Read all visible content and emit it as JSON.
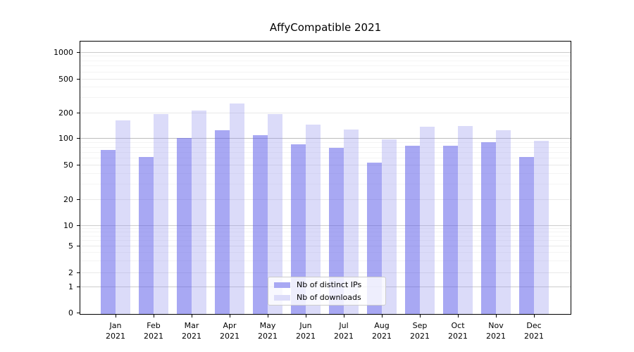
{
  "figure": {
    "background": "#ffffff",
    "plot_border_color": "#000000"
  },
  "chart_data": {
    "type": "bar",
    "title": "AffyCompatible 2021",
    "categories": [
      "Jan",
      "Feb",
      "Mar",
      "Apr",
      "May",
      "Jun",
      "Jul",
      "Aug",
      "Sep",
      "Oct",
      "Nov",
      "Dec"
    ],
    "category_year": "2021",
    "series": [
      {
        "name": "Nb of distinct IPs",
        "legend_color": "#a8a8f3",
        "fill": "rgba(97,97,233,0.55)",
        "values": [
          74,
          62,
          100,
          124,
          109,
          86,
          78,
          53,
          82,
          82,
          90,
          62
        ]
      },
      {
        "name": "Nb of downloads",
        "legend_color": "#dcdcf9",
        "fill": "rgba(152,152,238,0.35)",
        "values": [
          161,
          190,
          210,
          255,
          190,
          143,
          125,
          97,
          136,
          139,
          124,
          94
        ]
      }
    ],
    "yticks": [
      1000,
      500,
      200,
      100,
      50,
      20,
      10,
      5,
      2,
      1,
      0
    ],
    "y_scale": "asinh-log",
    "grid": true,
    "gridline_colors": {
      "decade": "#cccccc",
      "decade_emph": "#bcbcbc",
      "labeled_minor": "#e9e9e9",
      "unlabeled_minor": "#f4f4f4"
    },
    "legend_position": "lower center"
  }
}
